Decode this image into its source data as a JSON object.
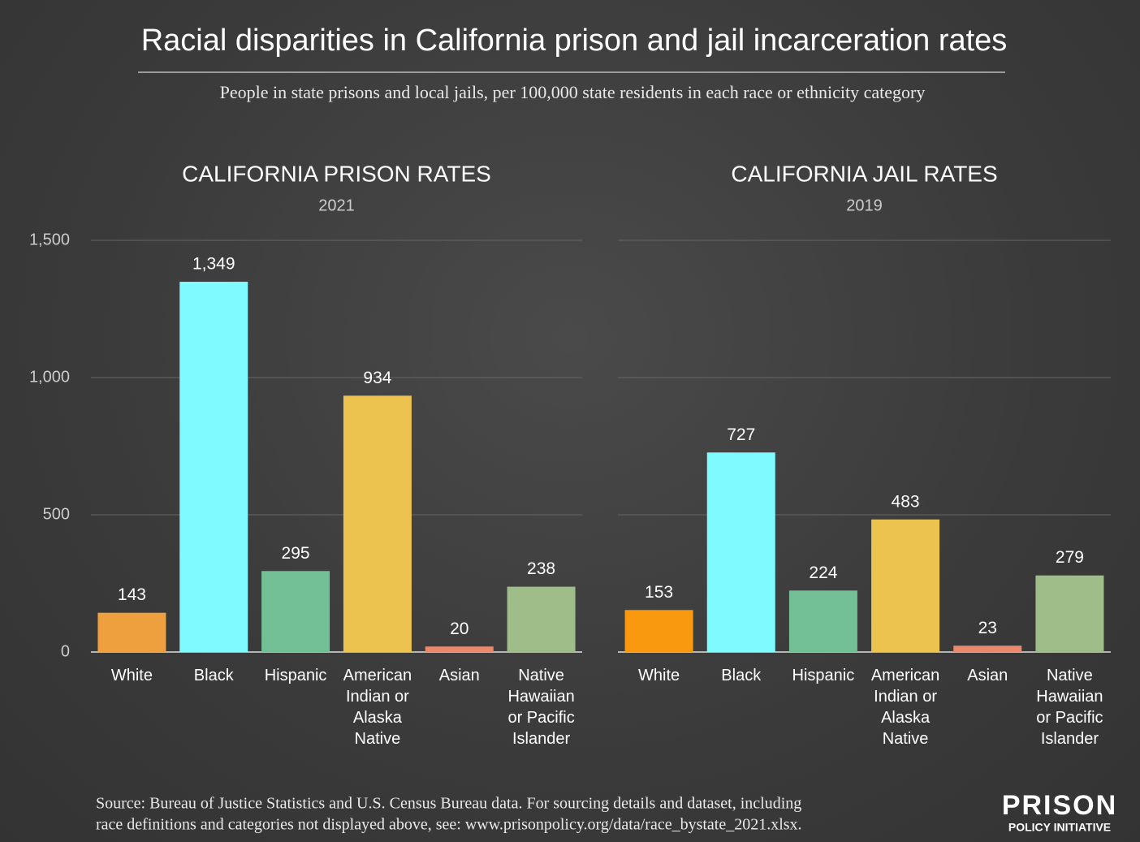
{
  "title": "Racial disparities in California prison and jail incarceration rates",
  "subtitle": "People in state prisons and local jails, per 100,000 state residents in each race or ethnicity category",
  "source": [
    "Source: Bureau of Justice Statistics and U.S. Census Bureau data. For sourcing details and dataset, including",
    "race definitions and categories not displayed above, see: www.prisonpolicy.org/data/race_bystate_2021.xlsx."
  ],
  "logo": [
    "PRISON",
    "POLICY INITIATIVE"
  ],
  "chart_data": [
    {
      "type": "bar",
      "title": "CALIFORNIA PRISON RATES",
      "subtitle": "2021",
      "categories": [
        "White",
        "Black",
        "Hispanic",
        "American Indian or Alaska Native",
        "Asian",
        "Native Hawaiian or Pacific Islander"
      ],
      "values": [
        143,
        1349,
        295,
        934,
        20,
        238
      ],
      "value_labels": [
        "143",
        "1,349",
        "295",
        "934",
        "20",
        "238"
      ],
      "colors": [
        "#eea03f",
        "#7ffbff",
        "#73c096",
        "#ecc34f",
        "#e98a6f",
        "#9ebd88"
      ],
      "ylim": [
        0,
        1500
      ],
      "yticks": [
        0,
        500,
        {
          "value": 1000,
          "label": "1,000"
        },
        {
          "value": 1500,
          "label": "1,500"
        }
      ],
      "grid": true
    },
    {
      "type": "bar",
      "title": "CALIFORNIA JAIL RATES",
      "subtitle": "2019",
      "categories": [
        "White",
        "Black",
        "Hispanic",
        "American Indian or Alaska Native",
        "Asian",
        "Native Hawaiian or Pacific Islander"
      ],
      "values": [
        153,
        727,
        224,
        483,
        23,
        279
      ],
      "colors": [
        "#f8990f",
        "#7ffbff",
        "#73c096",
        "#ecc34f",
        "#e98a6f",
        "#9ebd88"
      ],
      "ylim": [
        0,
        1500
      ],
      "grid": true
    }
  ]
}
